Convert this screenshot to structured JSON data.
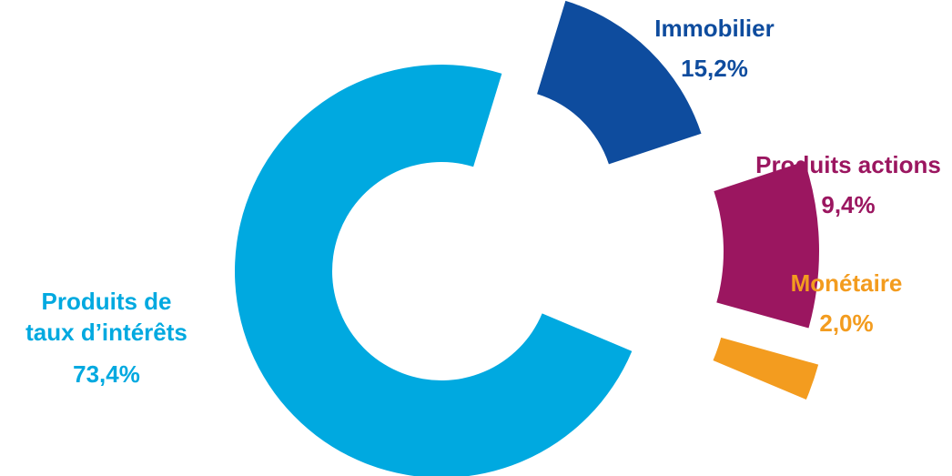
{
  "chart_data": {
    "type": "pie",
    "variant": "exploded-donut",
    "title": "",
    "slices": [
      {
        "label_lines": [
          "Immobilier"
        ],
        "value": 15.2,
        "value_label": "15,2%",
        "color": "#0E4C9E"
      },
      {
        "label_lines": [
          "Produits actions"
        ],
        "value": 9.4,
        "value_label": "9,4%",
        "color": "#9B1660"
      },
      {
        "label_lines": [
          "Monétaire"
        ],
        "value": 2.0,
        "value_label": "2,0%",
        "color": "#F39C1F"
      },
      {
        "label_lines": [
          "Produits de",
          "taux d’intérêts"
        ],
        "value": 73.4,
        "value_label": "73,4%",
        "color": "#00A9E0"
      }
    ]
  }
}
